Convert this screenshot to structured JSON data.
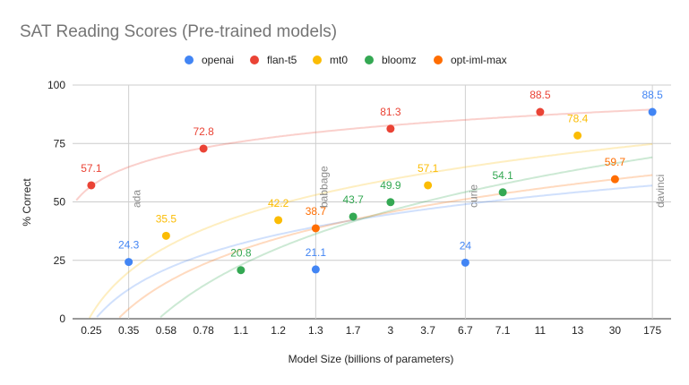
{
  "chart_data": {
    "type": "scatter",
    "title": "SAT Reading Scores (Pre-trained models)",
    "xlabel": "Model Size (billions of parameters)",
    "ylabel": "% Correct",
    "categories": [
      "0.25",
      "0.35",
      "0.58",
      "0.78",
      "1.1",
      "1.2",
      "1.3",
      "1.7",
      "3",
      "3.7",
      "6.7",
      "7.1",
      "11",
      "13",
      "30",
      "175"
    ],
    "ylim": [
      0,
      100
    ],
    "yticks": [
      "0",
      "25",
      "50",
      "75",
      "100"
    ],
    "grid": "horizontal",
    "legend": "top",
    "trendlines": "logarithmic",
    "series": [
      {
        "name": "openai",
        "color": "#4285F4",
        "points": [
          {
            "x": "0.35",
            "y": 24.3,
            "label": "24.3"
          },
          {
            "x": "1.3",
            "y": 21.1,
            "label": "21.1"
          },
          {
            "x": "6.7",
            "y": 24,
            "label": "24"
          },
          {
            "x": "175",
            "y": 88.5,
            "label": "88.5"
          }
        ]
      },
      {
        "name": "flan-t5",
        "color": "#EA4335",
        "points": [
          {
            "x": "0.25",
            "y": 57.1,
            "label": "57.1"
          },
          {
            "x": "0.78",
            "y": 72.8,
            "label": "72.8"
          },
          {
            "x": "3",
            "y": 81.3,
            "label": "81.3"
          },
          {
            "x": "11",
            "y": 88.5,
            "label": "88.5"
          }
        ]
      },
      {
        "name": "mt0",
        "color": "#FBBC04",
        "points": [
          {
            "x": "0.58",
            "y": 35.5,
            "label": "35.5"
          },
          {
            "x": "1.2",
            "y": 42.2,
            "label": "42.2"
          },
          {
            "x": "3.7",
            "y": 57.1,
            "label": "57.1"
          },
          {
            "x": "13",
            "y": 78.4,
            "label": "78.4"
          }
        ]
      },
      {
        "name": "bloomz",
        "color": "#34A853",
        "points": [
          {
            "x": "1.1",
            "y": 20.8,
            "label": "20.8"
          },
          {
            "x": "1.7",
            "y": 43.7,
            "label": "43.7"
          },
          {
            "x": "3",
            "y": 49.9,
            "label": "49.9"
          },
          {
            "x": "7.1",
            "y": 54.1,
            "label": "54.1"
          }
        ]
      },
      {
        "name": "opt-iml-max",
        "color": "#FF6D01",
        "points": [
          {
            "x": "1.3",
            "y": 38.7,
            "label": "38.7"
          },
          {
            "x": "30",
            "y": 59.7,
            "label": "59.7"
          }
        ]
      }
    ],
    "annotations": [
      {
        "text": "ada",
        "x": "0.35"
      },
      {
        "text": "babbage",
        "x": "1.3"
      },
      {
        "text": "curie",
        "x": "6.7"
      },
      {
        "text": "davinci",
        "x": "175"
      }
    ]
  }
}
